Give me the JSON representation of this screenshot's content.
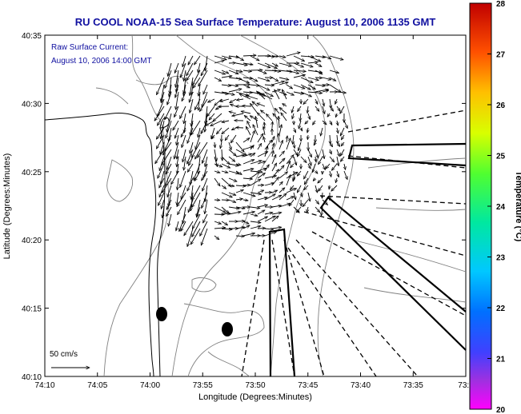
{
  "title": "RU COOL  NOAA-15  Sea Surface Temperature:  August 10, 2006 1135 GMT",
  "annotation": {
    "line1": "Raw Surface Current:",
    "line2": "August 10, 2006 14:00 GMT"
  },
  "scale_label": "50 cm/s",
  "axes": {
    "xlabel": "Longitude (Degrees:Minutes)",
    "ylabel": "Latitude (Degrees:Minutes)",
    "xticks": [
      "74:10",
      "74:05",
      "74:00",
      "73:55",
      "73:50",
      "73:45",
      "73:40",
      "73:35",
      "73:3"
    ],
    "yticks": [
      "40:35",
      "40:30",
      "40:25",
      "40:20",
      "40:15",
      "40:10"
    ]
  },
  "colorbar": {
    "label": "Temperature (°C)",
    "ticks": [
      "28",
      "27",
      "26",
      "25",
      "24",
      "23",
      "22",
      "21",
      "20"
    ],
    "min": 20,
    "max": 28
  },
  "colors": {
    "title": "#1010a0",
    "frame": "#000000",
    "land_outline": "#000000",
    "bathymetry": "#808080"
  }
}
